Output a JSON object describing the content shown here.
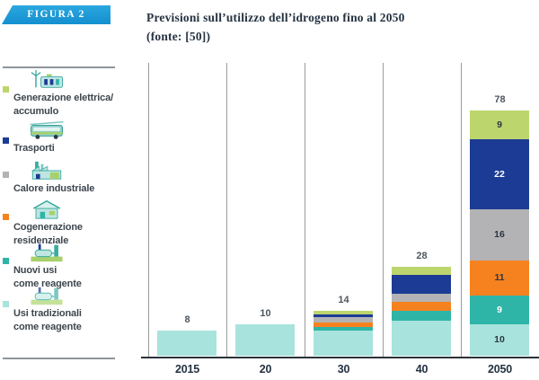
{
  "figure": {
    "badge_label": "FIGURA 2",
    "title": "Previsioni sull’utilizzo dell’idrogeno fino al 2050",
    "subtitle": "(fonte: [50])"
  },
  "colors": {
    "badge_cyan": "#1c9dd9",
    "title_navy": "#243240",
    "gridline_gray": "#9b9b9b",
    "axis_dark": "#2a333c",
    "value_label_gray": "#4d565e"
  },
  "legend": {
    "items": [
      {
        "icon": "wind-turbine-battery-icon",
        "swatch_color": "#bcd56d",
        "lines": [
          "Generazione elettrica/",
          "accumulo"
        ]
      },
      {
        "icon": "bus-icon",
        "swatch_color": "#1c3b94",
        "lines": [
          "Trasporti"
        ]
      },
      {
        "icon": "factory-icon",
        "swatch_color": "#b3b3b5",
        "lines": [
          "Calore industriale"
        ]
      },
      {
        "icon": "house-icon",
        "swatch_color": "#f6821f",
        "lines": [
          "Cogenerazione",
          "residenziale"
        ]
      },
      {
        "icon": "chemical-plant-icon",
        "swatch_color": "#2eb5a8",
        "lines": [
          "Nuovi usi",
          "come reagente"
        ]
      },
      {
        "icon": "chemical-plant-icon",
        "swatch_color": "#a9e3dd",
        "lines": [
          "Usi tradizionali",
          "come reagente"
        ]
      }
    ]
  },
  "chart_data": {
    "type": "bar",
    "stacked": true,
    "categories": [
      "2015",
      "20",
      "30",
      "40",
      "2050"
    ],
    "totals": [
      8,
      10,
      14,
      28,
      78
    ],
    "series": [
      {
        "name": "Usi tradizionali come reagente",
        "color": "#a9e3dd",
        "values": [
          8,
          10,
          8,
          11,
          10
        ]
      },
      {
        "name": "Nuovi usi come reagente",
        "color": "#2eb5a8",
        "values": [
          0,
          0,
          1,
          3,
          9
        ]
      },
      {
        "name": "Cogenerazione residenziale",
        "color": "#f6821f",
        "values": [
          0,
          0,
          1.5,
          3,
          11
        ]
      },
      {
        "name": "Calore industriale",
        "color": "#b3b3b5",
        "values": [
          0,
          0,
          1.5,
          2.5,
          16
        ]
      },
      {
        "name": "Trasporti",
        "color": "#1c3b94",
        "values": [
          0,
          0,
          1,
          6,
          22
        ]
      },
      {
        "name": "Generazione elettrica/accumulo",
        "color": "#bcd56d",
        "values": [
          0,
          0,
          1,
          2.5,
          9
        ]
      }
    ],
    "segment_labels_category": "2050",
    "segment_labels_top_to_bottom": [
      9,
      22,
      16,
      11,
      9,
      10
    ],
    "ylim": [
      0,
      92
    ],
    "grid": "vertical-category-separators",
    "legend_position": "left"
  }
}
